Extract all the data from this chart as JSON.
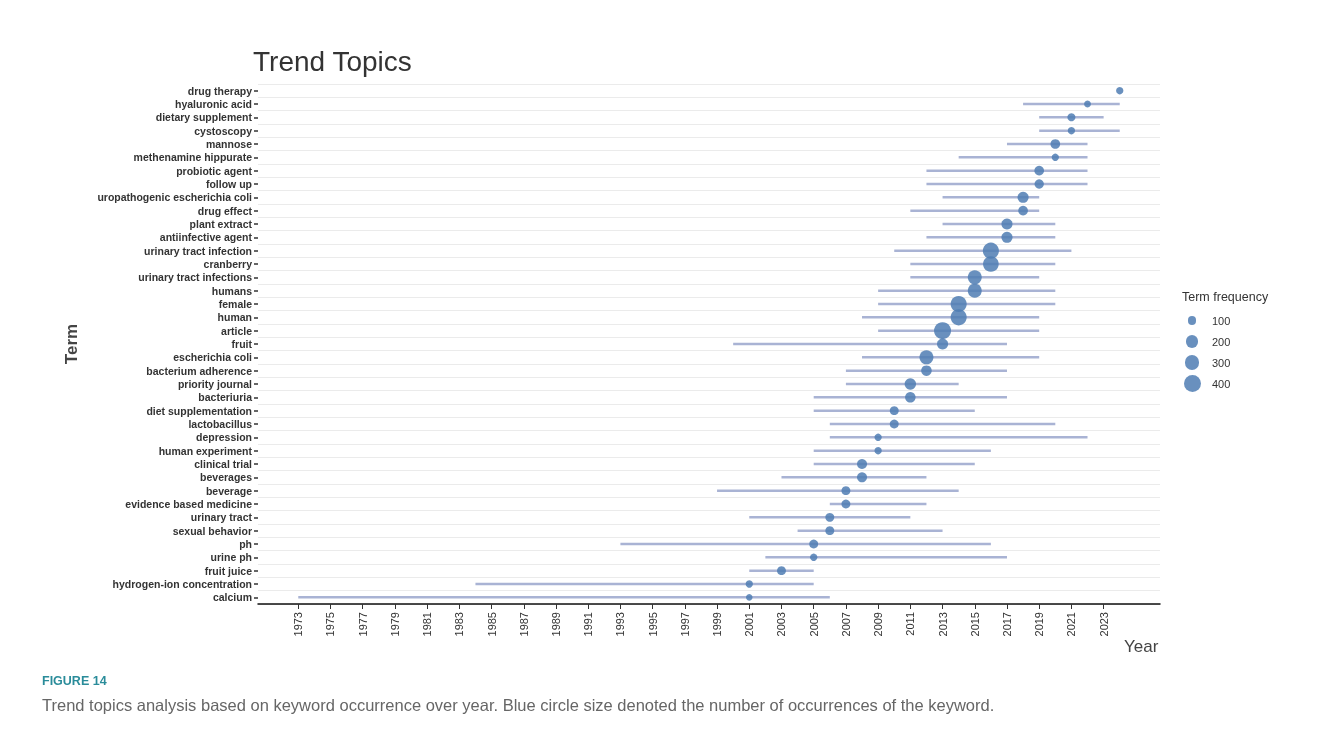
{
  "chart_data": {
    "type": "bubble",
    "orientation": "horizontal",
    "title": "Trend Topics",
    "xlabel": "Year",
    "ylabel": "Term",
    "legend_title": "Term frequency",
    "grid": "y",
    "categories": [
      "drug therapy",
      "hyaluronic acid",
      "dietary supplement",
      "cystoscopy",
      "mannose",
      "methenamine hippurate",
      "probiotic agent",
      "follow up",
      "uropathogenic escherichia coli",
      "drug effect",
      "plant extract",
      "antiinfective agent",
      "urinary tract infection",
      "cranberry",
      "urinary tract infections",
      "humans",
      "female",
      "human",
      "article",
      "fruit",
      "escherichia coli",
      "bacterium adherence",
      "priority journal",
      "bacteriuria",
      "diet supplementation",
      "lactobacillus",
      "depression",
      "human experiment",
      "clinical trial",
      "beverages",
      "beverage",
      "evidence based medicine",
      "urinary tract",
      "sexual behavior",
      "ph",
      "urine ph",
      "fruit juice",
      "hydrogen-ion concentration",
      "calcium"
    ],
    "series": [
      {
        "color": "#4f7db3",
        "values": [
          2024,
          2022,
          2021,
          2021,
          2020,
          2020,
          2019,
          2019,
          2018,
          2018,
          2017,
          2017,
          2016,
          2016,
          2015,
          2015,
          2014,
          2014,
          2013,
          2013,
          2012,
          2012,
          2011,
          2011,
          2010,
          2010,
          2009,
          2009,
          2008,
          2008,
          2007,
          2007,
          2006,
          2006,
          2005,
          2005,
          2003,
          2001,
          2001
        ],
        "errors": [
          null,
          [
            2018,
            2024
          ],
          [
            2019,
            2023
          ],
          [
            2019,
            2024
          ],
          [
            2017,
            2022
          ],
          [
            2014,
            2022
          ],
          [
            2012,
            2022
          ],
          [
            2012,
            2022
          ],
          [
            2013,
            2019
          ],
          [
            2011,
            2019
          ],
          [
            2013,
            2020
          ],
          [
            2012,
            2020
          ],
          [
            2010,
            2021
          ],
          [
            2011,
            2020
          ],
          [
            2011,
            2019
          ],
          [
            2009,
            2020
          ],
          [
            2009,
            2020
          ],
          [
            2008,
            2019
          ],
          [
            2009,
            2019
          ],
          [
            2000,
            2017
          ],
          [
            2008,
            2019
          ],
          [
            2007,
            2017
          ],
          [
            2007,
            2014
          ],
          [
            2005,
            2017
          ],
          [
            2005,
            2015
          ],
          [
            2006,
            2020
          ],
          [
            2006,
            2022
          ],
          [
            2005,
            2016
          ],
          [
            2005,
            2015
          ],
          [
            2003,
            2012
          ],
          [
            1999,
            2014
          ],
          [
            2006,
            2012
          ],
          [
            2001,
            2011
          ],
          [
            2004,
            2013
          ],
          [
            1993,
            2016
          ],
          [
            2002,
            2017
          ],
          [
            2001,
            2005
          ],
          [
            1984,
            2005
          ],
          [
            1973,
            2006
          ]
        ],
        "sizes": [
          75,
          65,
          90,
          75,
          130,
          75,
          130,
          120,
          170,
          130,
          170,
          170,
          360,
          340,
          270,
          270,
          360,
          360,
          400,
          170,
          270,
          155,
          180,
          155,
          110,
          110,
          75,
          75,
          140,
          140,
          110,
          110,
          110,
          110,
          110,
          75,
          110,
          75,
          60
        ]
      }
    ],
    "size_legend": [
      100,
      200,
      300,
      400
    ],
    "xlim": [
      1970.5,
      2026.5
    ],
    "xticks": [
      1973,
      1975,
      1977,
      1979,
      1981,
      1983,
      1985,
      1987,
      1989,
      1991,
      1993,
      1995,
      1997,
      1999,
      2001,
      2003,
      2005,
      2007,
      2009,
      2011,
      2013,
      2015,
      2017,
      2019,
      2021,
      2023
    ],
    "annotations": [
      "FIGURE 14",
      "Trend topics analysis based on keyword occurrence over year. Blue circle size denoted the number of occurrences of the keyword."
    ]
  }
}
